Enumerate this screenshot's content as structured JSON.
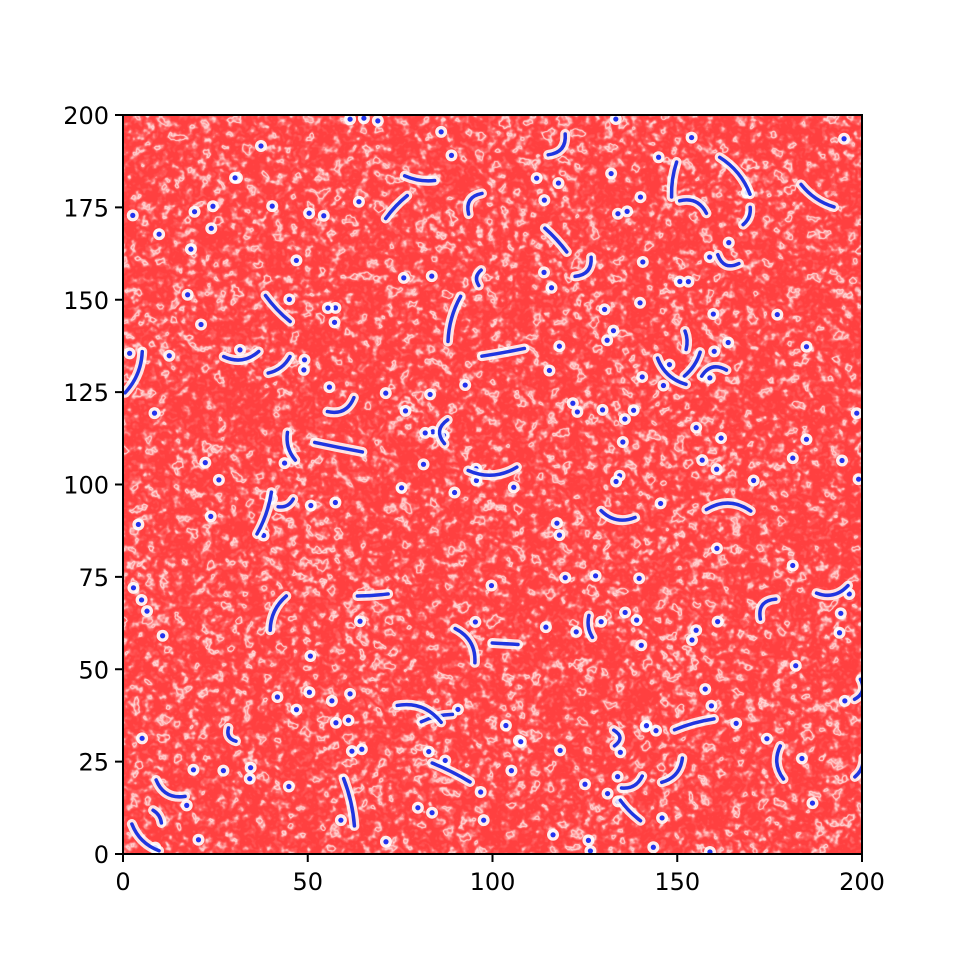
{
  "chart_data": {
    "type": "heatmap",
    "title": "",
    "xlabel": "",
    "ylabel": "",
    "xlim": [
      0,
      200
    ],
    "ylim": [
      0,
      200
    ],
    "x_ticks": [
      0,
      50,
      100,
      150,
      200
    ],
    "y_ticks": [
      0,
      25,
      50,
      75,
      100,
      125,
      150,
      175,
      200
    ],
    "x_tick_labels": [
      "0",
      "50",
      "100",
      "150",
      "200"
    ],
    "y_tick_labels": [
      "0",
      "25",
      "50",
      "75",
      "100",
      "125",
      "150",
      "175",
      "200"
    ],
    "grid": false,
    "legend": "none",
    "colormap": "bwr",
    "colors": {
      "low": "#0000ff",
      "mid": "#ffffff",
      "high": "#ff0000"
    },
    "field_description": "2D spatial field of irregular cells dominated by high (red) values with white ridges and many small blue spots and filaments"
  }
}
